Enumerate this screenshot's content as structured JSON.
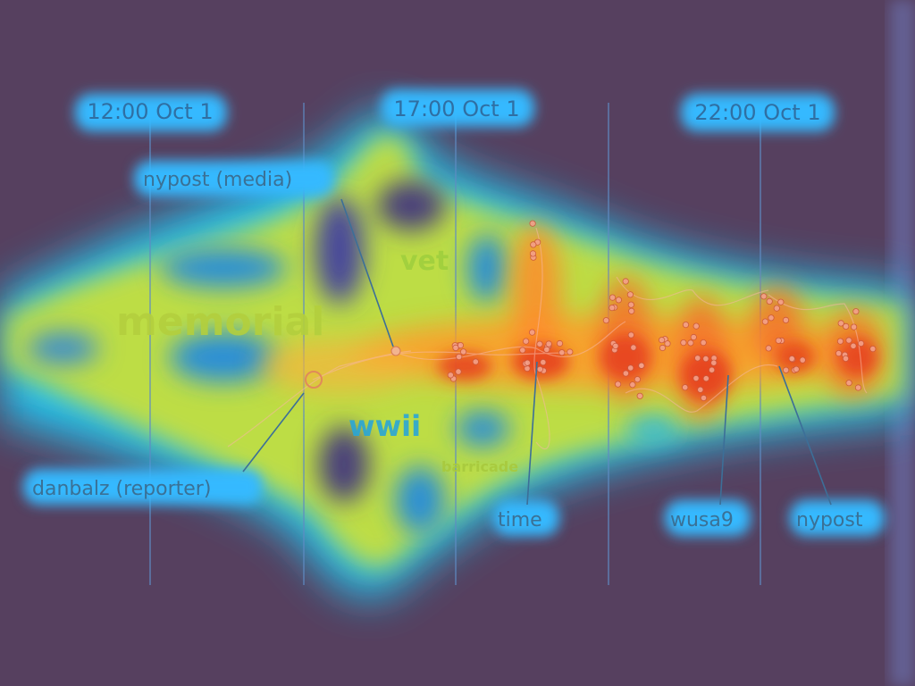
{
  "time_axis": {
    "ticks": [
      "12:00 Oct 1",
      "17:00 Oct 1",
      "22:00 Oct 1"
    ]
  },
  "topics": [
    "memorial",
    "vet",
    "wwii",
    "barricade"
  ],
  "annotations": [
    {
      "key": "nypost_media",
      "label": "nypost (media)"
    },
    {
      "key": "danbalz",
      "label": "danbalz (reporter)"
    },
    {
      "key": "time",
      "label": "time"
    },
    {
      "key": "wusa9",
      "label": "wusa9"
    },
    {
      "key": "nypost",
      "label": "nypost"
    }
  ],
  "colors": {
    "background": "#56405f",
    "heat_low": "#2ad8ff",
    "heat_mid": "#c7e23a",
    "heat_high": "#e5401c",
    "guide_line": "#5f8cc4"
  }
}
